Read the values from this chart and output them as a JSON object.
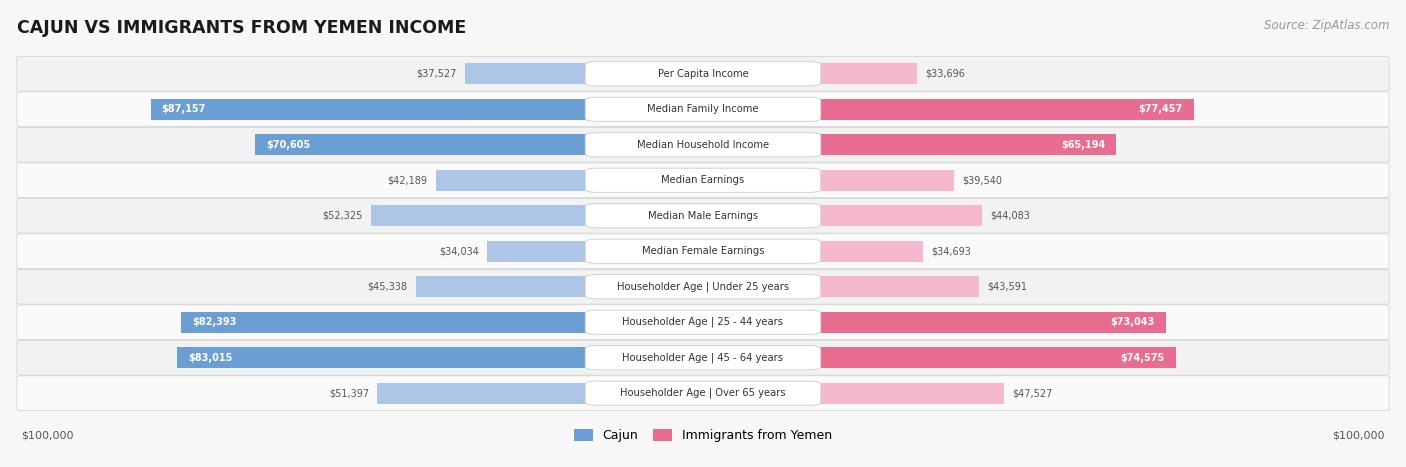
{
  "title": "CAJUN VS IMMIGRANTS FROM YEMEN INCOME",
  "source": "Source: ZipAtlas.com",
  "categories": [
    "Per Capita Income",
    "Median Family Income",
    "Median Household Income",
    "Median Earnings",
    "Median Male Earnings",
    "Median Female Earnings",
    "Householder Age | Under 25 years",
    "Householder Age | 25 - 44 years",
    "Householder Age | 45 - 64 years",
    "Householder Age | Over 65 years"
  ],
  "cajun_values": [
    37527,
    87157,
    70605,
    42189,
    52325,
    34034,
    45338,
    82393,
    83015,
    51397
  ],
  "yemen_values": [
    33696,
    77457,
    65194,
    39540,
    44083,
    34693,
    43591,
    73043,
    74575,
    47527
  ],
  "cajun_color_light": "#adc6e8",
  "cajun_color_dark": "#6b9fd4",
  "yemen_color_light": "#f5b8ce",
  "yemen_color_dark": "#e96d90",
  "max_value": 100000,
  "legend_cajun": "Cajun",
  "legend_yemen": "Immigrants from Yemen",
  "background_color": "#f7f7f7",
  "row_colors": [
    "#f2f2f2",
    "#fafafa"
  ],
  "label_threshold": 65000
}
